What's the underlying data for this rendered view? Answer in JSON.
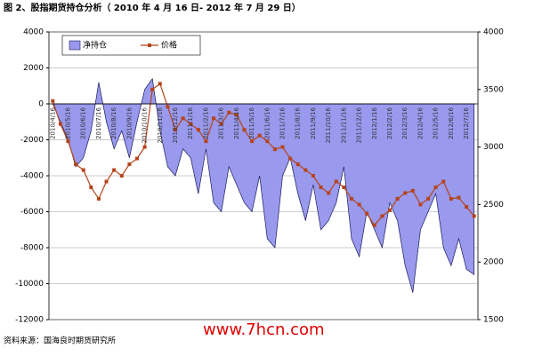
{
  "chart_data": {
    "type": "combo",
    "title": "图 2、股指期货持仓分析（ 2010 年 4 月 16 日- 2012 年 7 月 29 日）",
    "source": "资料来源：国海良时期货研究所",
    "watermark": "www.7hcn.com",
    "categories": [
      "2010/4/16",
      null,
      "2010/5/16",
      null,
      "2010/6/16",
      null,
      "2010/7/16",
      null,
      "2010/8/16",
      null,
      "2010/9/16",
      null,
      "2010/10/16",
      null,
      "2010/11/16",
      null,
      "2010/12/16",
      null,
      "2011/1/16",
      null,
      "2011/2/16",
      null,
      "2011/3/16",
      null,
      "2011/4/16",
      null,
      "2011/5/16",
      null,
      "2011/6/16",
      null,
      "2011/7/16",
      null,
      "2011/8/16",
      null,
      "2011/9/16",
      null,
      "2011/10/16",
      null,
      "2011/11/16",
      null,
      "2011/12/16",
      null,
      "2012/1/16",
      null,
      "2012/2/16",
      null,
      "2012/3/16",
      null,
      "2012/4/16",
      null,
      "2012/5/16",
      null,
      "2012/6/16",
      null,
      "2012/7/16",
      null
    ],
    "series": [
      {
        "name": "净持仓",
        "type": "area",
        "color": "#9999ee",
        "values": [
          0,
          -1000,
          -2000,
          -3500,
          -3000,
          -1500,
          1200,
          -1000,
          -2500,
          -1500,
          -3000,
          -1000,
          800,
          1400,
          -1500,
          -3500,
          -4000,
          -2500,
          -3000,
          -5000,
          -2500,
          -5500,
          -6000,
          -3500,
          -4500,
          -5500,
          -6000,
          -4000,
          -7500,
          -8000,
          -4000,
          -3000,
          -5000,
          -6500,
          -4500,
          -7000,
          -6500,
          -5500,
          -3500,
          -7500,
          -8500,
          -6000,
          -7000,
          -8000,
          -5500,
          -6500,
          -9000,
          -10500,
          -7000,
          -6000,
          -5000,
          -8000,
          -9000,
          -7500,
          -9200,
          -9500
        ]
      },
      {
        "name": "价格",
        "type": "line",
        "axis": "y2",
        "color": "#b5441a",
        "values": [
          3400,
          3200,
          3050,
          2850,
          2800,
          2650,
          2550,
          2700,
          2800,
          2750,
          2850,
          2900,
          3000,
          3500,
          3550,
          3350,
          3150,
          3250,
          3200,
          3150,
          3050,
          3250,
          3200,
          3300,
          3280,
          3150,
          3050,
          3100,
          3050,
          2980,
          3000,
          2900,
          2850,
          2800,
          2750,
          2650,
          2600,
          2700,
          2650,
          2550,
          2500,
          2420,
          2320,
          2400,
          2450,
          2550,
          2600,
          2620,
          2500,
          2550,
          2650,
          2700,
          2550,
          2560,
          2480,
          2400
        ]
      }
    ],
    "ylim": [
      -12000,
      4000
    ],
    "yticks": [
      -12000,
      -10000,
      -8000,
      -6000,
      -4000,
      -2000,
      0,
      2000,
      4000
    ],
    "y2lim": [
      1500,
      4000
    ],
    "y2ticks": [
      1500,
      2000,
      2500,
      3000,
      3500,
      4000
    ],
    "grid": true
  }
}
